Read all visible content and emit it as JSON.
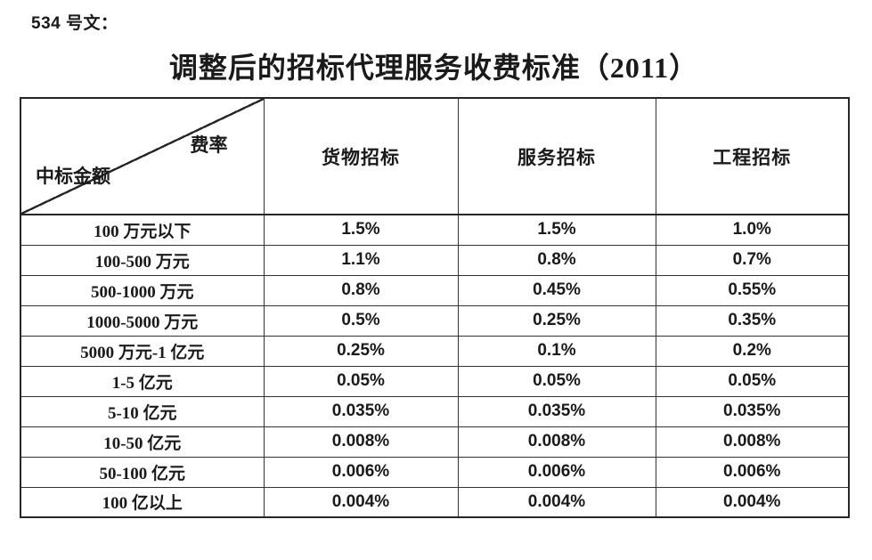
{
  "page": {
    "doc_label": "534 号文：",
    "title": "调整后的招标代理服务收费标准（2011）"
  },
  "table": {
    "corner": {
      "top_right": "费率",
      "bottom_left": "中标金额"
    },
    "columns": [
      "货物招标",
      "服务招标",
      "工程招标"
    ],
    "rows": [
      {
        "label": "100 万元以下",
        "values": [
          "1.5%",
          "1.5%",
          "1.0%"
        ]
      },
      {
        "label": "100-500 万元",
        "values": [
          "1.1%",
          "0.8%",
          "0.7%"
        ]
      },
      {
        "label": "500-1000 万元",
        "values": [
          "0.8%",
          "0.45%",
          "0.55%"
        ]
      },
      {
        "label": "1000-5000 万元",
        "values": [
          "0.5%",
          "0.25%",
          "0.35%"
        ]
      },
      {
        "label": "5000 万元-1 亿元",
        "values": [
          "0.25%",
          "0.1%",
          "0.2%"
        ]
      },
      {
        "label": "1-5 亿元",
        "values": [
          "0.05%",
          "0.05%",
          "0.05%"
        ]
      },
      {
        "label": "5-10 亿元",
        "values": [
          "0.035%",
          "0.035%",
          "0.035%"
        ]
      },
      {
        "label": "10-50 亿元",
        "values": [
          "0.008%",
          "0.008%",
          "0.008%"
        ]
      },
      {
        "label": "50-100 亿元",
        "values": [
          "0.006%",
          "0.006%",
          "0.006%"
        ]
      },
      {
        "label": "100 亿以上",
        "values": [
          "0.004%",
          "0.004%",
          "0.004%"
        ]
      }
    ],
    "colors": {
      "text": "#1a1a1a",
      "border": "#262626",
      "background": "#ffffff"
    }
  }
}
